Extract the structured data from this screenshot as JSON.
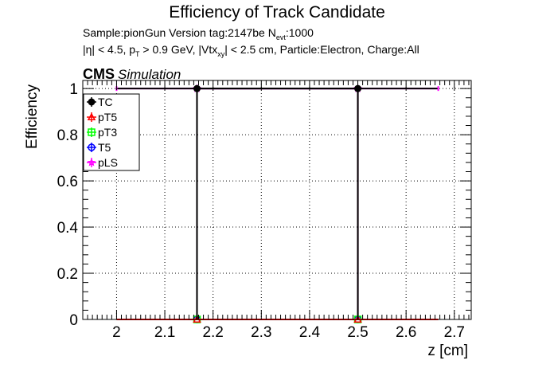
{
  "header": {
    "title": "Efficiency of Track Candidate",
    "sample_line": {
      "prefix": "Sample:pionGun   Version tag:2147be  N",
      "sub": "evt",
      "suffix": ":1000"
    },
    "cuts_line": {
      "part1": "|η| < 4.5, p",
      "sub1": "T",
      "part2": " > 0.9 GeV, |Vtx",
      "sub2": "xy",
      "part3": "| < 2.5 cm, Particle:Electron, Charge:All"
    },
    "cms_label": "CMS",
    "cms_sublabel": "Simulation"
  },
  "chart_data": {
    "type": "scatter",
    "xlabel": "z [cm]",
    "ylabel": "Efficiency",
    "xlim": [
      1.93,
      2.735
    ],
    "ylim": [
      0,
      1.035
    ],
    "xticks": [
      "2",
      "2.1",
      "2.2",
      "2.3",
      "2.4",
      "2.5",
      "2.6",
      "2.7"
    ],
    "yticks": [
      "0",
      "0.2",
      "0.4",
      "0.6",
      "0.8",
      "1"
    ],
    "grid": true,
    "legend_position": "top-left",
    "bins": [
      {
        "xlow": 2.0,
        "xhigh": 2.1667
      },
      {
        "xlow": 2.1667,
        "xhigh": 2.5
      },
      {
        "xlow": 2.5,
        "xhigh": 2.6667
      }
    ],
    "series": [
      {
        "name": "TC",
        "color": "#000000",
        "marker": "circle-filled",
        "points": [
          {
            "x": 2.1667,
            "y": 1.0
          },
          {
            "x": 2.5,
            "y": 1.0
          }
        ]
      },
      {
        "name": "pT5",
        "color": "#ff0000",
        "marker": "triangle-open",
        "points": [
          {
            "x": 2.1667,
            "y": 0.0
          },
          {
            "x": 2.5,
            "y": 0.0
          }
        ]
      },
      {
        "name": "pT3",
        "color": "#00ff00",
        "marker": "square-open",
        "points": [
          {
            "x": 2.1667,
            "y": 0.0
          },
          {
            "x": 2.5,
            "y": 0.0
          }
        ]
      },
      {
        "name": "T5",
        "color": "#0000ff",
        "marker": "circle-open",
        "points": [
          {
            "x": 2.1667,
            "y": 0.0
          },
          {
            "x": 2.5,
            "y": 0.0
          }
        ]
      },
      {
        "name": "pLS",
        "color": "#ff00ff",
        "marker": "star",
        "points": [
          {
            "x": 2.1667,
            "y": 1.0
          },
          {
            "x": 2.5,
            "y": 1.0
          }
        ]
      }
    ]
  }
}
